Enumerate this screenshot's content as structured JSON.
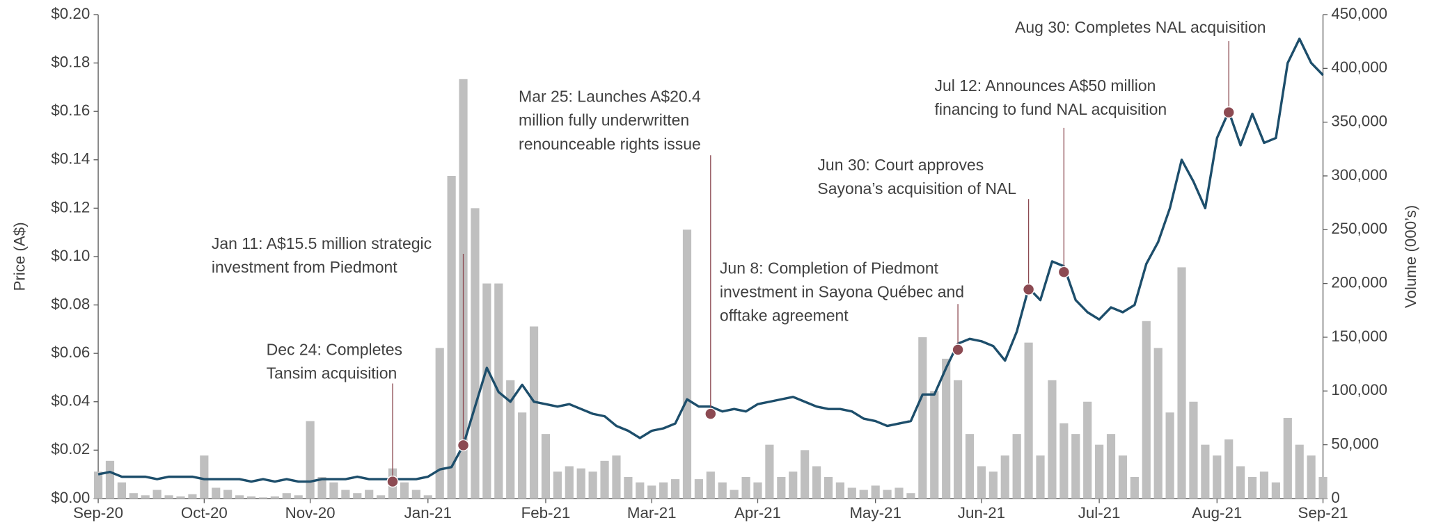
{
  "chart_data": {
    "type": "bar-line",
    "y_label": "Price (A$)",
    "y2_label": "Volume (000’s)",
    "categories": [
      "Sep-20",
      null,
      null,
      null,
      null,
      null,
      null,
      null,
      null,
      "Oct-20",
      null,
      null,
      null,
      null,
      null,
      null,
      null,
      null,
      "Nov-20",
      null,
      null,
      null,
      null,
      null,
      null,
      null,
      null,
      null,
      "Jan-21",
      null,
      null,
      null,
      null,
      null,
      null,
      null,
      null,
      null,
      "Feb-21",
      null,
      null,
      null,
      null,
      null,
      null,
      null,
      null,
      "Mar-21",
      null,
      null,
      null,
      null,
      null,
      null,
      null,
      null,
      "Apr-21",
      null,
      null,
      null,
      null,
      null,
      null,
      null,
      null,
      null,
      "May-21",
      null,
      null,
      null,
      null,
      null,
      null,
      null,
      null,
      "Jun-21",
      null,
      null,
      null,
      null,
      null,
      null,
      null,
      null,
      null,
      "Jul-21",
      null,
      null,
      null,
      null,
      null,
      null,
      null,
      null,
      null,
      "Aug-21",
      null,
      null,
      null,
      null,
      null,
      null,
      null,
      null,
      "Sep-21"
    ],
    "series": [
      {
        "name": "Volume",
        "type": "bar",
        "axis": "y2",
        "color": "#bfbfbf",
        "values": [
          25000,
          35000,
          15000,
          5000,
          3000,
          8000,
          3000,
          2000,
          4000,
          40000,
          10000,
          8000,
          3000,
          2000,
          1000,
          2000,
          5000,
          3000,
          72000,
          20000,
          15000,
          8000,
          5000,
          8000,
          3000,
          28000,
          15000,
          8000,
          3000,
          140000,
          300000,
          390000,
          270000,
          200000,
          200000,
          110000,
          80000,
          160000,
          60000,
          25000,
          30000,
          28000,
          25000,
          35000,
          40000,
          20000,
          15000,
          12000,
          15000,
          18000,
          250000,
          18000,
          25000,
          15000,
          8000,
          20000,
          15000,
          50000,
          20000,
          25000,
          45000,
          30000,
          20000,
          15000,
          10000,
          8000,
          12000,
          8000,
          10000,
          5000,
          150000,
          100000,
          130000,
          110000,
          60000,
          30000,
          25000,
          40000,
          60000,
          145000,
          40000,
          110000,
          70000,
          60000,
          90000,
          50000,
          60000,
          40000,
          20000,
          165000,
          140000,
          80000,
          215000,
          90000,
          50000,
          40000,
          55000,
          30000,
          20000,
          25000,
          15000,
          75000,
          50000,
          40000,
          20000
        ]
      },
      {
        "name": "Price",
        "type": "line",
        "axis": "y",
        "color": "#1d4e6b",
        "values": [
          0.01,
          0.011,
          0.009,
          0.009,
          0.009,
          0.008,
          0.009,
          0.009,
          0.009,
          0.008,
          0.008,
          0.008,
          0.008,
          0.007,
          0.008,
          0.007,
          0.008,
          0.007,
          0.007,
          0.008,
          0.008,
          0.008,
          0.009,
          0.008,
          0.008,
          0.008,
          0.008,
          0.008,
          0.009,
          0.012,
          0.013,
          0.022,
          0.038,
          0.054,
          0.044,
          0.04,
          0.047,
          0.04,
          0.039,
          0.038,
          0.039,
          0.037,
          0.035,
          0.034,
          0.03,
          0.028,
          0.025,
          0.028,
          0.029,
          0.031,
          0.041,
          0.038,
          0.038,
          0.036,
          0.037,
          0.036,
          0.039,
          0.04,
          0.041,
          0.042,
          0.04,
          0.038,
          0.037,
          0.037,
          0.036,
          0.033,
          0.032,
          0.03,
          0.031,
          0.032,
          0.043,
          0.043,
          0.054,
          0.064,
          0.066,
          0.065,
          0.063,
          0.057,
          0.069,
          0.087,
          0.082,
          0.098,
          0.096,
          0.082,
          0.077,
          0.074,
          0.079,
          0.077,
          0.08,
          0.097,
          0.106,
          0.12,
          0.14,
          0.131,
          0.12,
          0.149,
          0.16,
          0.146,
          0.159,
          0.147,
          0.149,
          0.18,
          0.19,
          0.18,
          0.175
        ]
      }
    ],
    "ylim": [
      0,
      0.2
    ],
    "yticks": [
      {
        "value": 0,
        "label": "$0.00"
      },
      {
        "value": 0.02,
        "label": "$0.02"
      },
      {
        "value": 0.04,
        "label": "$0.04"
      },
      {
        "value": 0.06,
        "label": "$0.06"
      },
      {
        "value": 0.08,
        "label": "$0.08"
      },
      {
        "value": 0.1,
        "label": "$0.10"
      },
      {
        "value": 0.12,
        "label": "$0.12"
      },
      {
        "value": 0.14,
        "label": "$0.14"
      },
      {
        "value": 0.16,
        "label": "$0.16"
      },
      {
        "value": 0.18,
        "label": "$0.18"
      },
      {
        "value": 0.2,
        "label": "$0.20"
      }
    ],
    "y2lim": [
      0,
      450000
    ],
    "y2ticks": [
      0,
      {
        "value": 50000,
        "label": "50,000"
      },
      {
        "value": 100000,
        "label": "100,000"
      },
      {
        "value": 150000,
        "label": "150,000"
      },
      {
        "value": 200000,
        "label": "200,000"
      },
      {
        "value": 250000,
        "label": "250,000"
      },
      {
        "value": 300000,
        "label": "300,000"
      },
      {
        "value": 350000,
        "label": "350,000"
      },
      {
        "value": 400000,
        "label": "400,000"
      },
      {
        "value": 450000,
        "label": "450,000"
      }
    ],
    "annotation_color": "#8c4a52",
    "annotations": [
      {
        "lines": [
          "Dec 24: Completes",
          "Tansim acquisition"
        ],
        "point": 25,
        "value": 0.007
      },
      {
        "lines": [
          "Jan 11: A$15.5 million strategic",
          "investment from Piedmont"
        ],
        "point": 31,
        "value": 0.022
      },
      {
        "lines": [
          "Mar 25: Launches A$20.4",
          "million fully underwritten",
          "renounceable rights issue"
        ],
        "point": 52,
        "value": 0.035
      },
      {
        "lines": [
          "Jun 8: Completion of Piedmont",
          "investment in Sayona Québec and",
          "offtake agreement"
        ],
        "point": 73,
        "value": 0.0615
      },
      {
        "lines": [
          "Jun 30: Court approves",
          "Sayona’s acquisition of NAL"
        ],
        "point": 79,
        "value": 0.0864
      },
      {
        "lines": [
          "Jul 12: Announces A$50 million",
          "financing to fund NAL acquisition"
        ],
        "point": 82,
        "value": 0.0936
      },
      {
        "lines": [
          "Aug 30: Completes NAL acquisition"
        ],
        "point": 96,
        "value": 0.1596
      }
    ]
  }
}
